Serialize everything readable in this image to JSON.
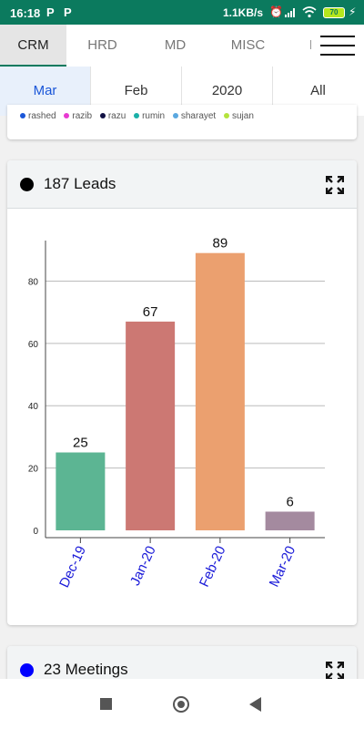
{
  "status": {
    "time": "16:18",
    "speed": "1.1KB/s",
    "battery": "70",
    "app_icons": [
      "P",
      "P"
    ]
  },
  "tabs": [
    {
      "label": "CRM",
      "active": true
    },
    {
      "label": "HRD",
      "active": false
    },
    {
      "label": "MD",
      "active": false
    },
    {
      "label": "MISC",
      "active": false
    },
    {
      "label": "P",
      "active": false
    }
  ],
  "filters": [
    {
      "label": "Mar",
      "active": true
    },
    {
      "label": "Feb",
      "active": false
    },
    {
      "label": "2020",
      "active": false
    },
    {
      "label": "All",
      "active": false
    }
  ],
  "legend_prev": [
    {
      "name": "rashed",
      "color": "#1a56d8"
    },
    {
      "name": "razib",
      "color": "#e83ad1"
    },
    {
      "name": "razu",
      "color": "#111144"
    },
    {
      "name": "rumin",
      "color": "#1ab0a8"
    },
    {
      "name": "sharayet",
      "color": "#5aa8e0"
    },
    {
      "name": "sujan",
      "color": "#b4e33d"
    }
  ],
  "leads_card": {
    "title": "187 Leads",
    "bullet_color": "#000000"
  },
  "meetings_card": {
    "title": "23 Meetings",
    "bullet_color": "#0000ff"
  },
  "chart_data": {
    "type": "bar",
    "categories": [
      "Dec-19",
      "Jan-20",
      "Feb-20",
      "Mar-20"
    ],
    "values": [
      25,
      67,
      89,
      6
    ],
    "colors": [
      "#5cb593",
      "#cc7873",
      "#eba06f",
      "#a48a9f"
    ],
    "yticks": [
      0,
      20,
      40,
      60,
      80
    ],
    "ylim": [
      0,
      93
    ],
    "grid": true,
    "label_color": "#1a1ad8"
  }
}
